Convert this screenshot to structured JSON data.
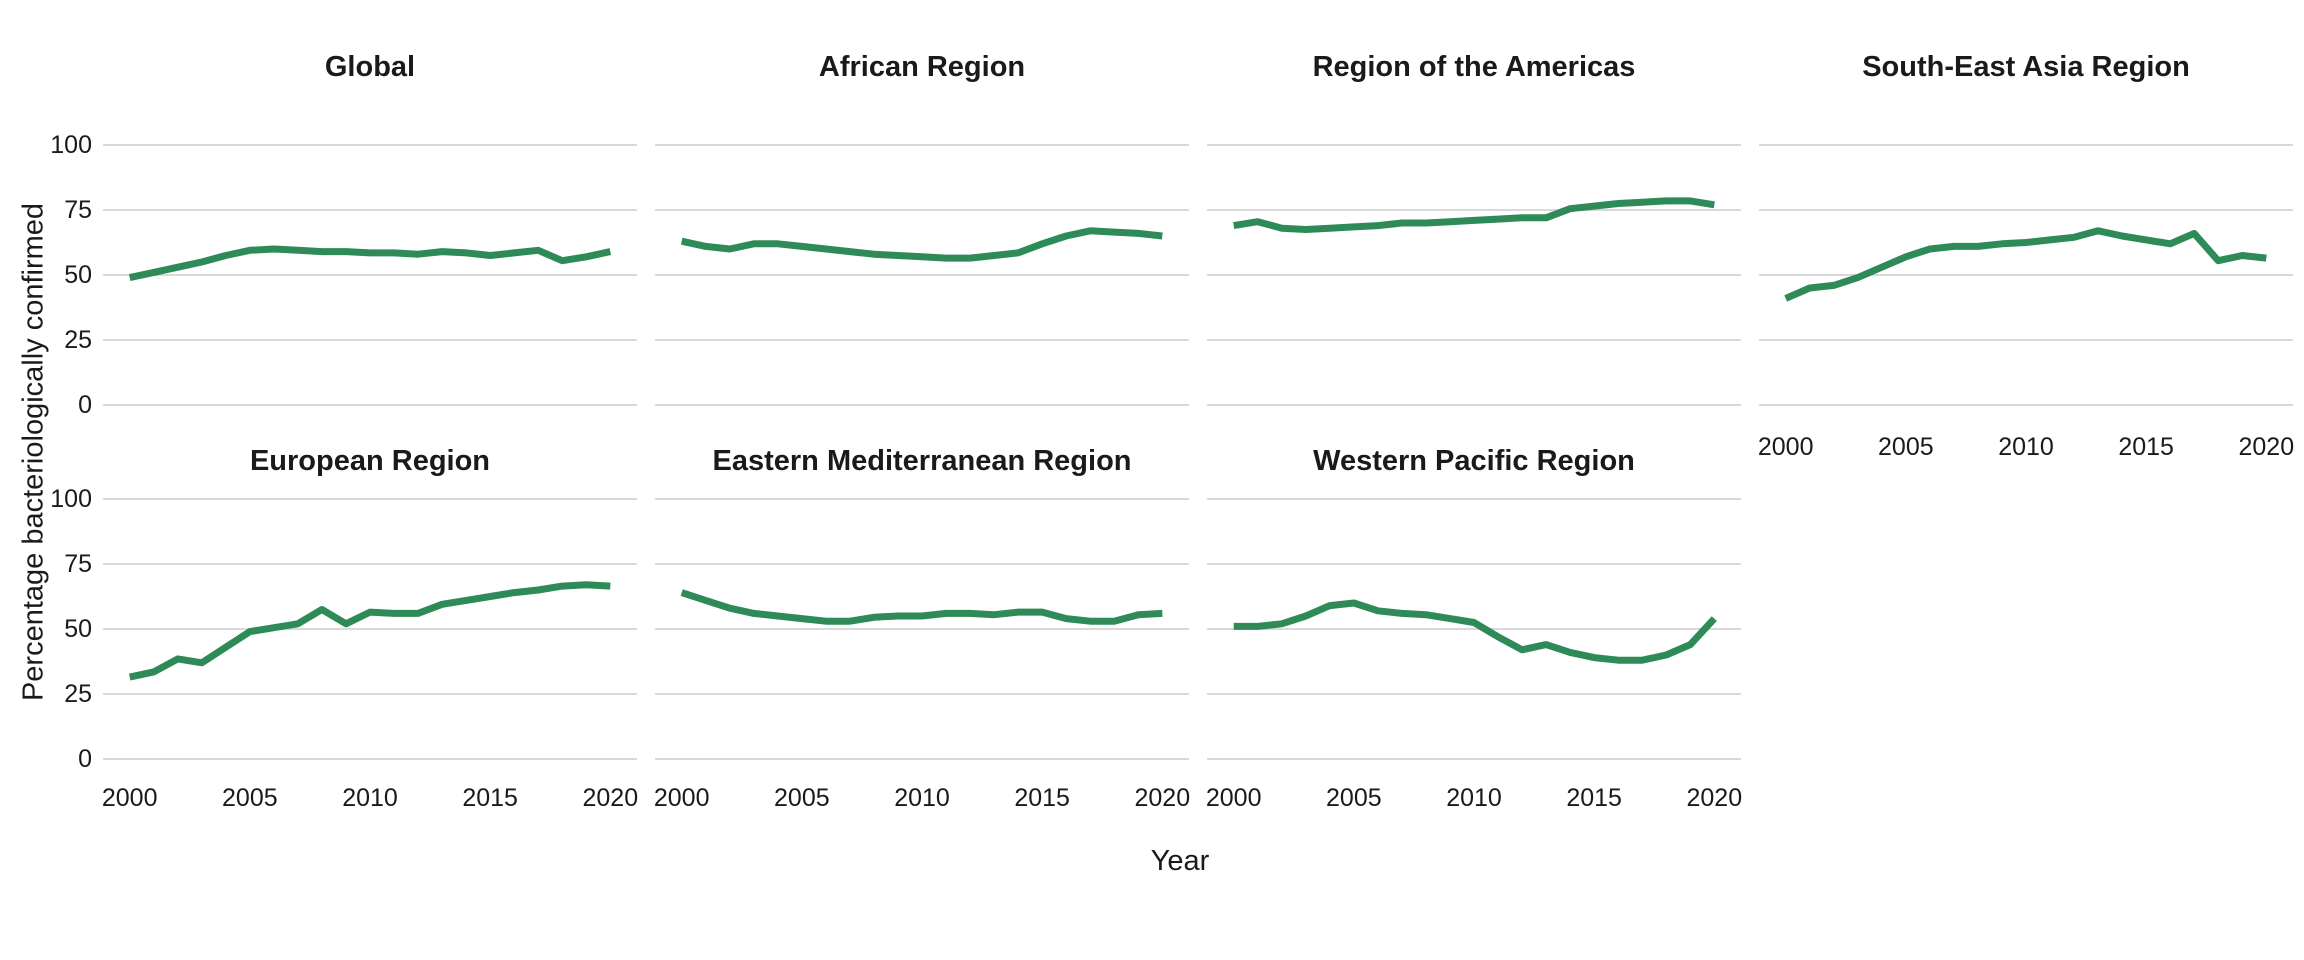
{
  "chart_data": {
    "type": "line",
    "xlabel": "Year",
    "ylabel": "Percentage bacteriologically confirmed",
    "x": [
      2000,
      2001,
      2002,
      2003,
      2004,
      2005,
      2006,
      2007,
      2008,
      2009,
      2010,
      2011,
      2012,
      2013,
      2014,
      2015,
      2016,
      2017,
      2018,
      2019,
      2020
    ],
    "xticks": [
      2000,
      2005,
      2010,
      2015,
      2020
    ],
    "yticks": [
      100,
      75,
      50,
      25,
      0
    ],
    "ylim": [
      0,
      100
    ],
    "xlim": [
      2000,
      2020
    ],
    "line_color": "#2e8b57",
    "grid_color": "#d9d9d9",
    "grid": "horizontal-only",
    "legend": "none",
    "series": [
      {
        "name": "Global",
        "values": [
          49,
          51,
          53,
          55,
          57.5,
          59.5,
          60,
          59.5,
          59,
          59,
          58.5,
          58.5,
          58,
          59,
          58.5,
          57.5,
          58.5,
          59.5,
          55.5,
          57,
          59
        ]
      },
      {
        "name": "African Region",
        "values": [
          63,
          61,
          60,
          62,
          62,
          61,
          60,
          59,
          58,
          57.5,
          57,
          56.5,
          56.5,
          57.5,
          58.5,
          62,
          65,
          67,
          66.5,
          66,
          65
        ]
      },
      {
        "name": "Region of the Americas",
        "values": [
          69,
          70.5,
          68,
          67.5,
          68,
          68.5,
          69,
          70,
          70,
          70.5,
          71,
          71.5,
          72,
          72,
          75.5,
          76.5,
          77.5,
          78,
          78.5,
          78.5,
          77
        ]
      },
      {
        "name": "South-East Asia Region",
        "values": [
          41,
          45,
          46,
          49,
          53,
          57,
          60,
          61,
          61,
          62,
          62.5,
          63.5,
          64.5,
          67,
          65,
          63.5,
          62,
          66,
          55.5,
          57.5,
          56.5
        ]
      },
      {
        "name": "European Region",
        "values": [
          31.5,
          33.5,
          38.5,
          37,
          43,
          49,
          50.5,
          52,
          57.5,
          52,
          56.5,
          56,
          56,
          59.5,
          61,
          62.5,
          64,
          65,
          66.5,
          67,
          66.5
        ]
      },
      {
        "name": "Eastern Mediterranean Region",
        "values": [
          64,
          61,
          58,
          56,
          55,
          54,
          53,
          53,
          54.5,
          55,
          55,
          56,
          56,
          55.5,
          56.5,
          56.5,
          54,
          53,
          53,
          55.5,
          56
        ]
      },
      {
        "name": "Western Pacific Region",
        "values": [
          51,
          51,
          52,
          55,
          59,
          60,
          57,
          56,
          55.5,
          54,
          52.5,
          47,
          42,
          44,
          41,
          39,
          38,
          38,
          40,
          44,
          54
        ]
      }
    ],
    "layout": {
      "facet_columns": 4,
      "facet_rows": 2,
      "panel_order": [
        "Global",
        "African Region",
        "Region of the Americas",
        "South-East Asia Region",
        "European Region",
        "Eastern Mediterranean Region",
        "Western Pacific Region"
      ],
      "panels_with_x_axis": [
        3,
        4,
        5,
        6
      ],
      "empty_slots": [
        7
      ]
    }
  }
}
